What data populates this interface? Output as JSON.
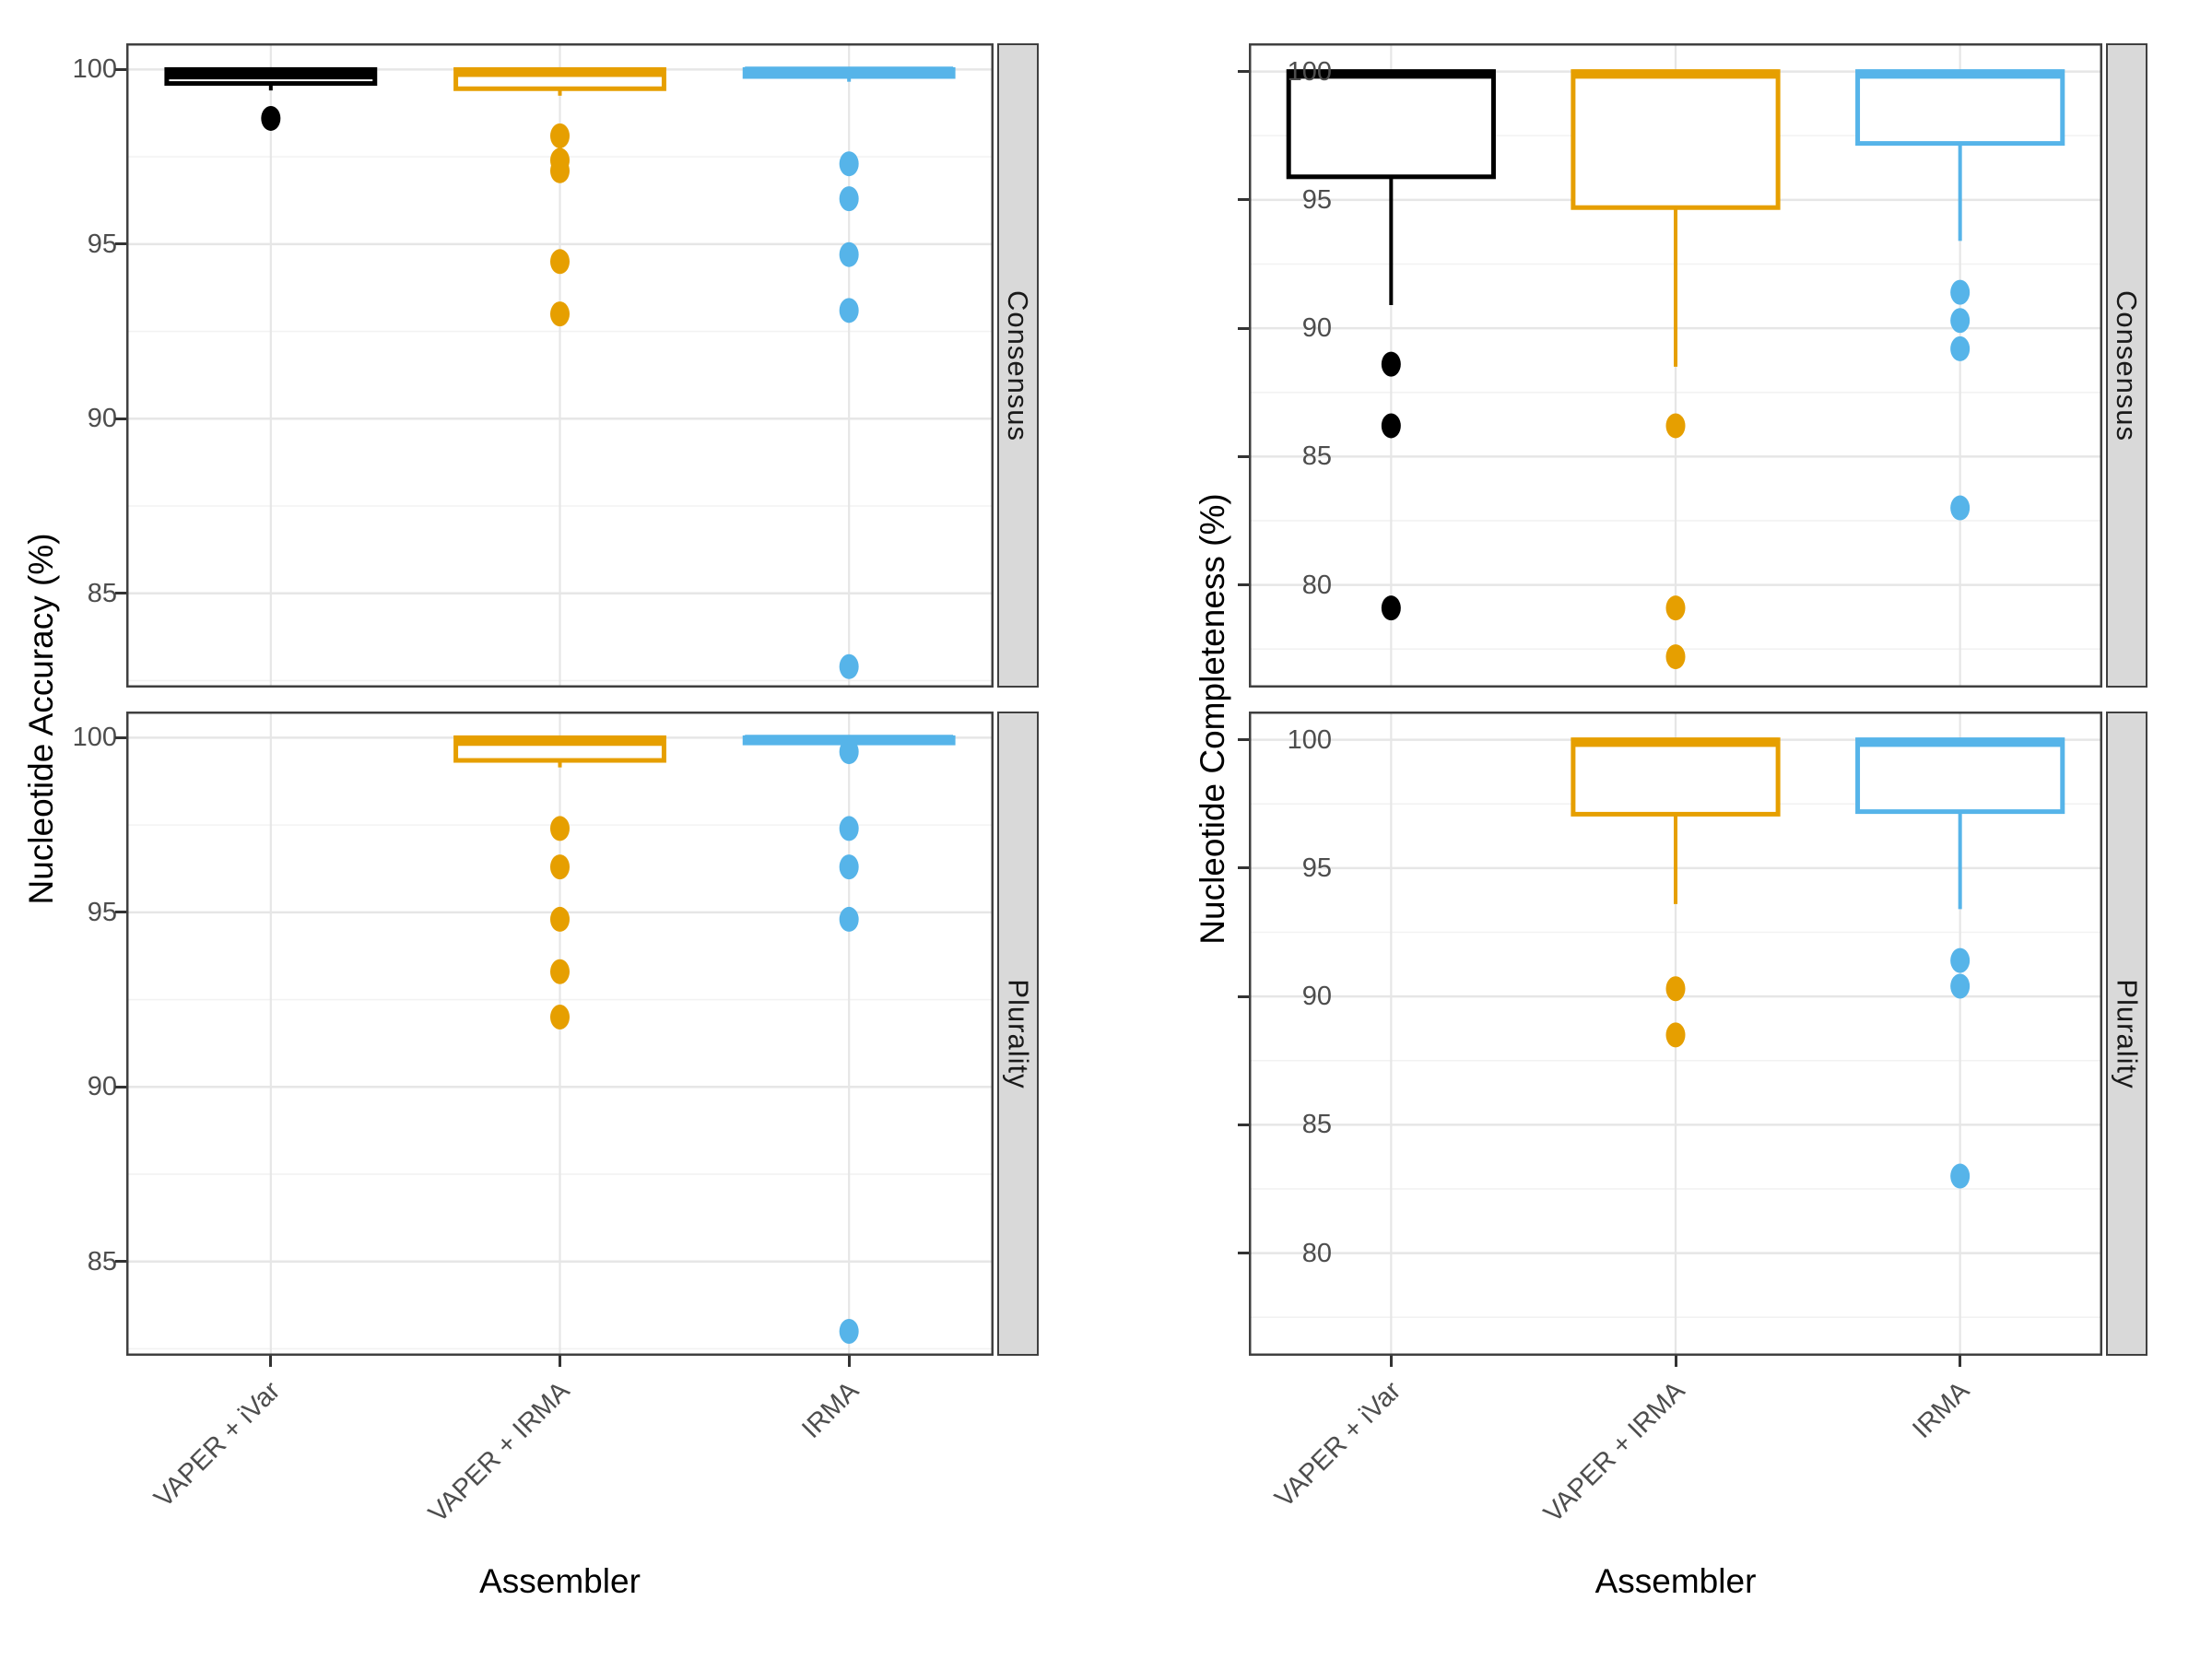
{
  "chart_data": {
    "type": "boxplot",
    "description": "Faceted boxplots of assembler performance; facets Consensus and Plurality (rows), two plots: Nucleotide Accuracy and Nucleotide Completeness",
    "categories": [
      "VAPER + iVar",
      "VAPER + IRMA",
      "IRMA"
    ],
    "x_title": "Assembler",
    "grid": "on",
    "legend": "none",
    "palette": {
      "VAPER + iVar": "#000000",
      "VAPER + IRMA": "#E69F00",
      "IRMA": "#56B4E9"
    },
    "facet_strip_bg": "#d9d9d9",
    "plots": [
      {
        "id": "accuracy",
        "y_title": "Nucleotide Accuracy (%)",
        "y_ticks": [
          100,
          95,
          90,
          85
        ],
        "y_domain": [
          82.3,
          100.75
        ],
        "facets": [
          {
            "label": "Consensus",
            "boxes": [
              {
                "category": "VAPER + iVar",
                "q1": 99.6,
                "median": 99.85,
                "q3": 100,
                "whisker_lo": 99.4,
                "whisker_hi": 100,
                "outliers": [
                  98.6
                ]
              },
              {
                "category": "VAPER + IRMA",
                "q1": 99.45,
                "median": 99.92,
                "q3": 100,
                "whisker_lo": 99.25,
                "whisker_hi": 100,
                "outliers": [
                  98.1,
                  97.4,
                  97.1,
                  94.5,
                  93.0
                ]
              },
              {
                "category": "IRMA",
                "q1": 99.8,
                "median": 99.95,
                "q3": 100,
                "whisker_lo": 99.65,
                "whisker_hi": 100,
                "outliers": [
                  97.3,
                  96.3,
                  94.7,
                  93.1,
                  82.9
                ]
              }
            ]
          },
          {
            "label": "Plurality",
            "boxes": [
              {
                "category": "VAPER + IRMA",
                "q1": 99.35,
                "median": 99.9,
                "q3": 100,
                "whisker_lo": 99.15,
                "whisker_hi": 100,
                "outliers": [
                  97.4,
                  96.3,
                  94.8,
                  93.3,
                  92.0
                ]
              },
              {
                "category": "IRMA",
                "q1": 99.85,
                "median": 99.95,
                "q3": 100,
                "whisker_lo": 99.7,
                "whisker_hi": 100,
                "outliers": [
                  99.6,
                  97.4,
                  96.3,
                  94.8,
                  83.0
                ]
              }
            ]
          }
        ]
      },
      {
        "id": "completeness",
        "y_title": "Nucleotide Completeness (%)",
        "y_ticks": [
          100,
          95,
          90,
          85,
          80
        ],
        "y_domain": [
          76.0,
          101.1
        ],
        "facets": [
          {
            "label": "Consensus",
            "boxes": [
              {
                "category": "VAPER + iVar",
                "q1": 95.9,
                "median": 99.9,
                "q3": 100,
                "whisker_lo": 90.9,
                "whisker_hi": 100,
                "outliers": [
                  88.6,
                  86.2,
                  79.1
                ]
              },
              {
                "category": "VAPER + IRMA",
                "q1": 94.7,
                "median": 99.9,
                "q3": 100,
                "whisker_lo": 88.5,
                "whisker_hi": 100,
                "outliers": [
                  86.2,
                  79.1,
                  77.2
                ]
              },
              {
                "category": "IRMA",
                "q1": 97.2,
                "median": 99.9,
                "q3": 100,
                "whisker_lo": 93.4,
                "whisker_hi": 100,
                "outliers": [
                  91.4,
                  90.3,
                  89.2,
                  83.0
                ]
              }
            ]
          },
          {
            "label": "Plurality",
            "boxes": [
              {
                "category": "VAPER + IRMA",
                "q1": 97.1,
                "median": 99.9,
                "q3": 100,
                "whisker_lo": 93.6,
                "whisker_hi": 100,
                "outliers": [
                  90.3,
                  88.5
                ]
              },
              {
                "category": "IRMA",
                "q1": 97.2,
                "median": 99.9,
                "q3": 100,
                "whisker_lo": 93.4,
                "whisker_hi": 100,
                "outliers": [
                  91.4,
                  90.4,
                  83.0
                ]
              }
            ]
          }
        ]
      }
    ]
  }
}
